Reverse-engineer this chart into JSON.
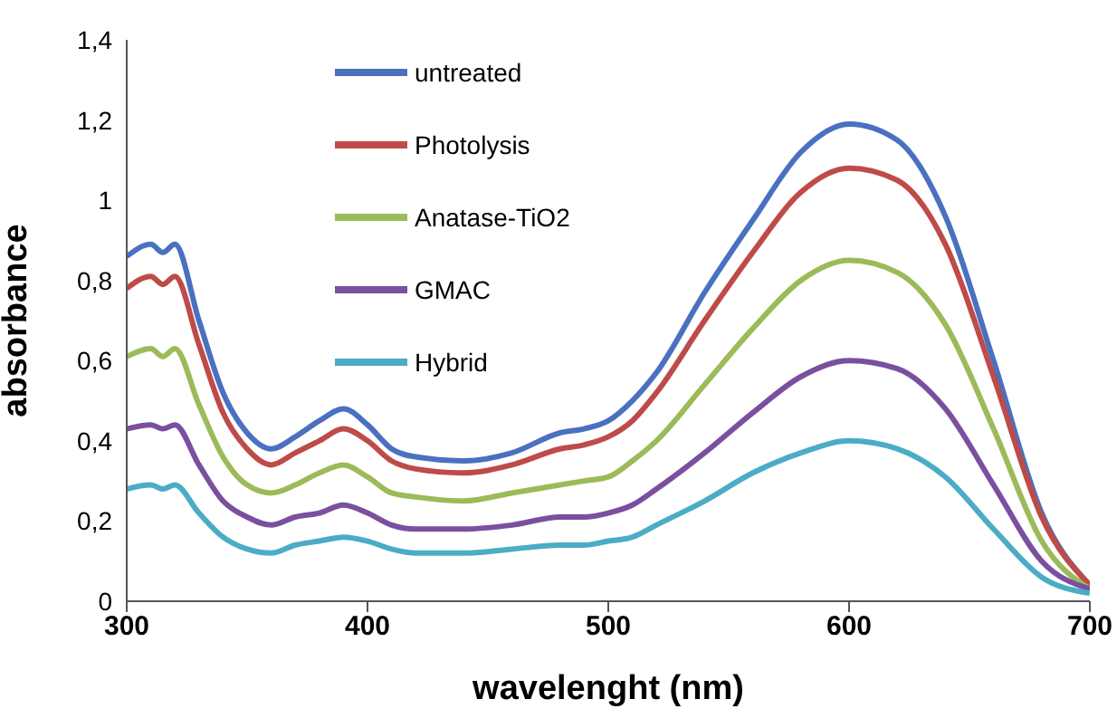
{
  "chart_data": {
    "type": "line",
    "xlabel": "wavelenght (nm)",
    "ylabel": "absorbance",
    "x": [
      300,
      310,
      315,
      320,
      330,
      340,
      350,
      360,
      370,
      380,
      390,
      400,
      410,
      420,
      440,
      460,
      480,
      490,
      500,
      510,
      520,
      540,
      560,
      580,
      600,
      620,
      640,
      660,
      680,
      700
    ],
    "series": [
      {
        "name": "untreated",
        "color": "#4a70c0",
        "values": [
          0.86,
          0.89,
          0.87,
          0.89,
          0.7,
          0.52,
          0.42,
          0.38,
          0.41,
          0.45,
          0.48,
          0.44,
          0.38,
          0.36,
          0.35,
          0.37,
          0.42,
          0.43,
          0.45,
          0.5,
          0.57,
          0.77,
          0.95,
          1.12,
          1.19,
          1.15,
          0.96,
          0.6,
          0.22,
          0.04
        ]
      },
      {
        "name": "Photolysis",
        "color": "#be4b48",
        "values": [
          0.78,
          0.81,
          0.79,
          0.81,
          0.64,
          0.47,
          0.38,
          0.34,
          0.37,
          0.4,
          0.43,
          0.4,
          0.35,
          0.33,
          0.32,
          0.34,
          0.38,
          0.39,
          0.41,
          0.45,
          0.52,
          0.7,
          0.87,
          1.02,
          1.08,
          1.05,
          0.89,
          0.56,
          0.21,
          0.04
        ]
      },
      {
        "name": "Anatase-TiO2",
        "color": "#9bbb59",
        "values": [
          0.61,
          0.63,
          0.61,
          0.63,
          0.49,
          0.36,
          0.29,
          0.27,
          0.29,
          0.32,
          0.34,
          0.31,
          0.27,
          0.26,
          0.25,
          0.27,
          0.29,
          0.3,
          0.31,
          0.35,
          0.4,
          0.54,
          0.68,
          0.8,
          0.85,
          0.82,
          0.69,
          0.43,
          0.15,
          0.03
        ]
      },
      {
        "name": "GMAC",
        "color": "#7b4fa0",
        "values": [
          0.43,
          0.44,
          0.43,
          0.44,
          0.34,
          0.25,
          0.21,
          0.19,
          0.21,
          0.22,
          0.24,
          0.22,
          0.19,
          0.18,
          0.18,
          0.19,
          0.21,
          0.21,
          0.22,
          0.24,
          0.28,
          0.37,
          0.47,
          0.56,
          0.6,
          0.58,
          0.48,
          0.29,
          0.1,
          0.03
        ]
      },
      {
        "name": "Hybrid",
        "color": "#4bacc6",
        "values": [
          0.28,
          0.29,
          0.28,
          0.29,
          0.22,
          0.16,
          0.13,
          0.12,
          0.14,
          0.15,
          0.16,
          0.15,
          0.13,
          0.12,
          0.12,
          0.13,
          0.14,
          0.14,
          0.15,
          0.16,
          0.19,
          0.25,
          0.32,
          0.37,
          0.4,
          0.38,
          0.31,
          0.18,
          0.06,
          0.02
        ]
      }
    ],
    "xlim": [
      300,
      700
    ],
    "xticks": [
      300,
      400,
      500,
      600,
      700
    ],
    "ylim": [
      0,
      1.4
    ],
    "yticks": [
      0,
      {
        "value": 0.2,
        "label": "0,2"
      },
      {
        "value": 0.4,
        "label": "0,4"
      },
      {
        "value": 0.6,
        "label": "0,6"
      },
      {
        "value": 0.8,
        "label": "0,8"
      },
      1,
      {
        "value": 1.2,
        "label": "1,2"
      },
      {
        "value": 1.4,
        "label": "1,4"
      }
    ],
    "grid": false,
    "legend": "top left",
    "marker": "none",
    "line_style": "solid"
  }
}
